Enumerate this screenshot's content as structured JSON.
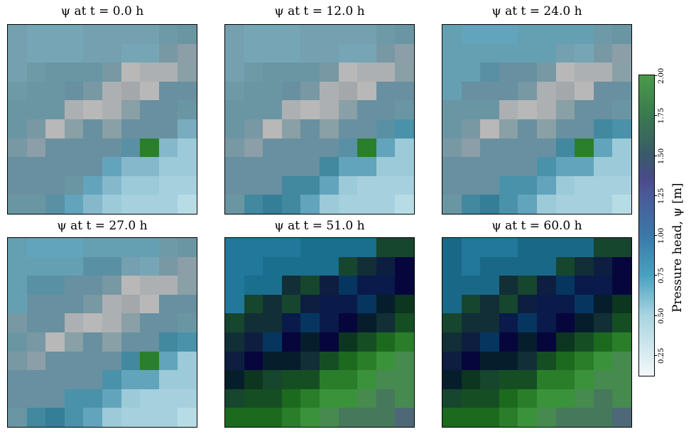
{
  "chart_data": {
    "type": "heatmap",
    "colorbar": {
      "label": "Pressure head, ψ  [m]",
      "range": [
        0.12,
        2.0
      ],
      "ticks": [
        "0.25",
        "0.50",
        "0.75",
        "1.00",
        "1.25",
        "1.50",
        "1.75",
        "2.00"
      ],
      "tick_values": [
        0.25,
        0.5,
        0.75,
        1.0,
        1.25,
        1.5,
        1.75,
        2.0
      ],
      "stops": [
        [
          0.12,
          "#f4f8fa"
        ],
        [
          0.5,
          "#a8d4e0"
        ],
        [
          0.75,
          "#4aa0c0"
        ],
        [
          1.0,
          "#3a78a8"
        ],
        [
          1.25,
          "#4a5a98"
        ],
        [
          1.35,
          "#4a4a8a"
        ],
        [
          1.5,
          "#3a5a6a"
        ],
        [
          1.75,
          "#3a7a50"
        ],
        [
          2.0,
          "#4a9a4a"
        ]
      ]
    },
    "levels": {
      "a": {
        "value": 0.6,
        "color": "#76a6b6"
      },
      "b": {
        "value": 0.62,
        "color": "#74a0b0"
      },
      "c": {
        "value": 0.68,
        "color": "#6e9aa8"
      },
      "d": {
        "value": 0.72,
        "color": "#6a96a4"
      },
      "e": {
        "value": 0.76,
        "color": "#6890a0"
      },
      "f": {
        "value": 0.8,
        "color": "#5a90a4"
      },
      "g": {
        "value": 0.8,
        "color": "#64a0b2"
      },
      "h": {
        "value": 0.85,
        "color": "#4a92aa"
      },
      "i": {
        "value": 0.9,
        "color": "#42889f"
      },
      "j": {
        "value": 0.95,
        "color": "#347e98"
      },
      "k": {
        "value": 0.72,
        "color": "#62a4bc"
      },
      "l": {
        "value": 0.6,
        "color": "#78acbe"
      },
      "m": {
        "value": 0.5,
        "color": "#86b8cc"
      },
      "n": {
        "value": 0.42,
        "color": "#9ccad8"
      },
      "o": {
        "value": 0.38,
        "color": "#a6d0de"
      },
      "p": {
        "value": 0.3,
        "color": "#b8dce6"
      },
      "G": {
        "value": 0.55,
        "color": "#b8b8b8"
      },
      "H": {
        "value": 0.56,
        "color": "#acb0b2"
      },
      "J": {
        "value": 0.57,
        "color": "#a4a8aa"
      },
      "I": {
        "value": 0.62,
        "color": "#88a0a6"
      },
      "K": {
        "value": 0.63,
        "color": "#8c9ea8"
      },
      "L": {
        "value": 0.64,
        "color": "#7898a4"
      },
      "P": {
        "value": 2.0,
        "color": "#2a7f2c"
      },
      "T": {
        "value": 0.95,
        "color": "#22789a"
      },
      "U": {
        "value": 1.0,
        "color": "#1a6e8e"
      },
      "S": {
        "value": 1.05,
        "color": "#1a6888"
      },
      "Q": {
        "value": 1.6,
        "color": "#16462e"
      },
      "R": {
        "value": 1.5,
        "color": "#122e36"
      },
      "V": {
        "value": 1.4,
        "color": "#0e1e40"
      },
      "W": {
        "value": 1.35,
        "color": "#06063c"
      },
      "X": {
        "value": 1.2,
        "color": "#063660"
      },
      "Y": {
        "value": 1.45,
        "color": "#061e2c"
      },
      "Z": {
        "value": 1.3,
        "color": "#0a1a4a"
      },
      "0": {
        "value": 1.55,
        "color": "#0c3620"
      },
      "1": {
        "value": 1.65,
        "color": "#164e24"
      },
      "2": {
        "value": 1.75,
        "color": "#1c6a1e"
      },
      "3": {
        "value": 1.85,
        "color": "#2a7e2a"
      },
      "4": {
        "value": 2.0,
        "color": "#3a923a"
      },
      "5": {
        "value": 1.9,
        "color": "#468a50"
      },
      "6": {
        "value": 1.8,
        "color": "#46785c"
      },
      "7": {
        "value": 1.7,
        "color": "#4e6878"
      }
    },
    "panels": [
      {
        "title": "ψ at t = 0.0 h",
        "grid": [
          "baaabbbbcd",
          "baaabbaaLK",
          "bcdddLGHHI",
          "cddeLHJGee",
          "dddHGHIeed",
          "dLGIeIeeel",
          "LKeeeefPmn",
          "eeeeekmmnn",
          "eeedkmnnoo",
          "ddfkmnooop"
        ]
      },
      {
        "title": "ψ at t = 12.0 h",
        "grid": [
          "baaabbbbcd",
          "baaabbaaLK",
          "bcdddLGHHI",
          "cddeLHJGee",
          "dddHGHIeed",
          "dLGIeIeefh",
          "LKeeeefPkn",
          "eeeeeikknn",
          "eeeiiknooo",
          "dijiknooop"
        ]
      },
      {
        "title": "ψ at t = 24.0 h",
        "grid": [
          "gkkkggggcd",
          "ggggggbaLK",
          "ggfeeLGHHI",
          "geeeLHJGee",
          "dddHGHIeed",
          "dLGIeIeeih",
          "LKeeeeiPkn",
          "eeeeehkknn",
          "eeehhknooo",
          "dijhknooop"
        ]
      },
      {
        "title": "ψ at t = 27.0 h",
        "grid": [
          "gkkkggggcd",
          "ggggffbaLK",
          "gffeeLGHHI",
          "geeeLHJGee",
          "LeeHGHIeed",
          "dLGIeIeeih",
          "LKeeeeiPkn",
          "eeeeehkknn",
          "eeehhknooo",
          "dijhknooop"
        ]
      },
      {
        "title": "ψ at t = 51.0 h",
        "grid": [
          "TTTTUUUUQQ",
          "TTUUUUQRVW",
          "TUURQVXZZW",
          "TQRQVZZXY0",
          "QRRZXZWYR1",
          "RVXWYW0123",
          "VWYYR12345",
          "Y0Q1133455",
          "Q112344565",
          "2223456667"
        ]
      },
      {
        "title": "ψ at t = 60.0 h",
        "grid": [
          "STTTSSSSQQ",
          "STSSSSQRVW",
          "SSSRQVXZZW",
          "SQRQVZZXY0",
          "QRRZXZWYR1",
          "RVXWYW0123",
          "VWYYR12345",
          "Y0Q1133455",
          "Q112344565",
          "2223456667"
        ]
      }
    ]
  }
}
